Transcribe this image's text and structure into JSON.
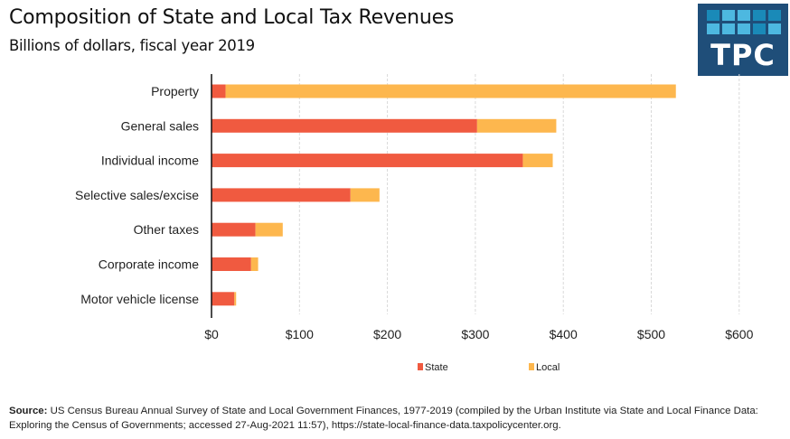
{
  "header": {
    "title": "Composition of State and Local Tax Revenues",
    "subtitle": "Billions of dollars, fiscal year 2019"
  },
  "logo": {
    "text": "TPC",
    "background": "#1f4e79",
    "tile_colors": [
      "#1a8ab8",
      "#4db8e0",
      "#4db8e0",
      "#1a8ab8",
      "#1a8ab8",
      "#4db8e0",
      "#4db8e0",
      "#4db8e0",
      "#1a8ab8",
      "#4db8e0"
    ]
  },
  "footer": {
    "source_label": "Source:",
    "source_text": "US Census Bureau Annual Survey of State and Local Government Finances, 1977-2019 (compiled by the Urban Institute via State and Local Finance Data: Exploring the Census of Governments; accessed 27-Aug-2021 11:57), https://state-local-finance-data.taxpolicycenter.org."
  },
  "chart_data": {
    "type": "bar",
    "orientation": "horizontal",
    "stacked": true,
    "title": "Composition of State and Local Tax Revenues",
    "subtitle": "Billions of dollars, fiscal year 2019",
    "xlabel": "",
    "ylabel": "",
    "xlim": [
      0,
      650
    ],
    "x_ticks": [
      0,
      100,
      200,
      300,
      400,
      500,
      600
    ],
    "x_tick_labels": [
      "$0",
      "$100",
      "$200",
      "$300",
      "$400",
      "$500",
      "$600"
    ],
    "grid": "vertical dashed",
    "legend_position": "bottom-center",
    "categories": [
      "Property",
      "General sales",
      "Individual income",
      "Selective sales/excise",
      "Other taxes",
      "Corporate income",
      "Motor vehicle license"
    ],
    "series": [
      {
        "name": "State",
        "color": "#f05a40",
        "values": [
          16,
          302,
          354,
          158,
          50,
          45,
          26
        ]
      },
      {
        "name": "Local",
        "color": "#fdb74e",
        "values": [
          512,
          90,
          34,
          33,
          31,
          8,
          2
        ]
      }
    ]
  }
}
